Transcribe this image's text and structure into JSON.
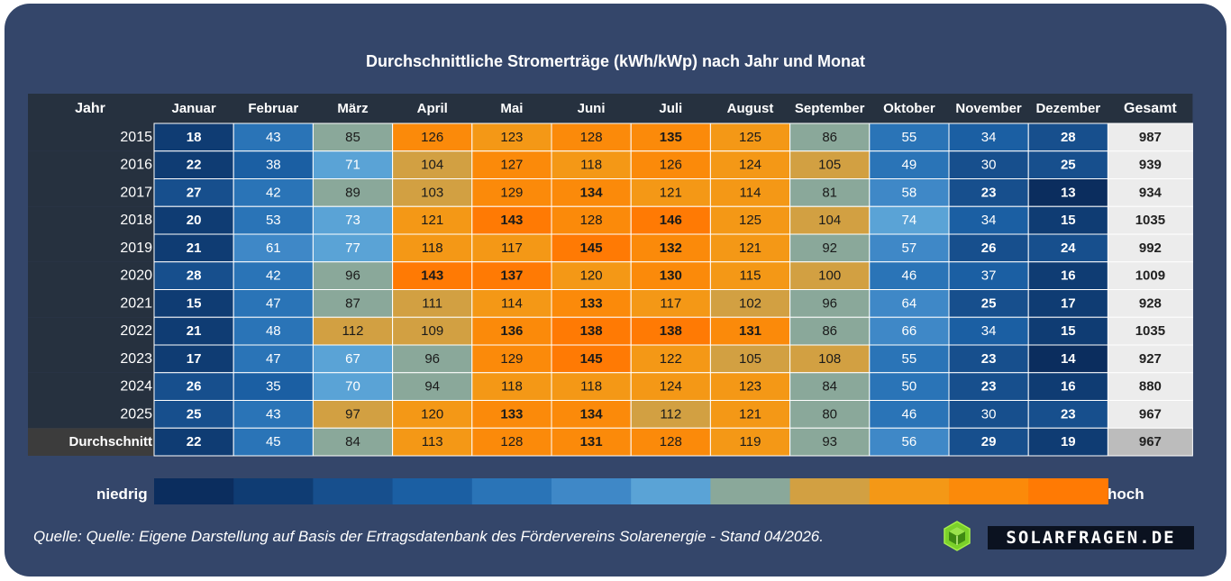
{
  "chart_data": {
    "type": "heatmap",
    "title": "Durchschnittliche Stromerträge (kWh/kWp) nach Jahr und Monat",
    "row_header": "Jahr",
    "columns": [
      "Januar",
      "Februar",
      "März",
      "April",
      "Mai",
      "Juni",
      "Juli",
      "August",
      "September",
      "Oktober",
      "November",
      "Dezember"
    ],
    "total_header": "Gesamt",
    "rows": [
      {
        "label": "2015",
        "values": [
          18,
          43,
          85,
          126,
          123,
          128,
          135,
          125,
          86,
          55,
          34,
          28
        ],
        "total": 987
      },
      {
        "label": "2016",
        "values": [
          22,
          38,
          71,
          104,
          127,
          118,
          126,
          124,
          105,
          49,
          30,
          25
        ],
        "total": 939
      },
      {
        "label": "2017",
        "values": [
          27,
          42,
          89,
          103,
          129,
          134,
          121,
          114,
          81,
          58,
          23,
          13
        ],
        "total": 934
      },
      {
        "label": "2018",
        "values": [
          20,
          53,
          73,
          121,
          143,
          128,
          146,
          125,
          104,
          74,
          34,
          15
        ],
        "total": 1035
      },
      {
        "label": "2019",
        "values": [
          21,
          61,
          77,
          118,
          117,
          145,
          132,
          121,
          92,
          57,
          26,
          24
        ],
        "total": 992
      },
      {
        "label": "2020",
        "values": [
          28,
          42,
          96,
          143,
          137,
          120,
          130,
          115,
          100,
          46,
          37,
          16
        ],
        "total": 1009
      },
      {
        "label": "2021",
        "values": [
          15,
          47,
          87,
          111,
          114,
          133,
          117,
          102,
          96,
          64,
          25,
          17
        ],
        "total": 928
      },
      {
        "label": "2022",
        "values": [
          21,
          48,
          112,
          109,
          136,
          138,
          138,
          131,
          86,
          66,
          34,
          15
        ],
        "total": 1035
      },
      {
        "label": "2023",
        "values": [
          17,
          47,
          67,
          96,
          129,
          145,
          122,
          105,
          108,
          55,
          23,
          14
        ],
        "total": 927
      },
      {
        "label": "2024",
        "values": [
          26,
          35,
          70,
          94,
          118,
          118,
          124,
          123,
          84,
          50,
          23,
          16
        ],
        "total": 880
      },
      {
        "label": "2025",
        "values": [
          25,
          43,
          97,
          120,
          133,
          134,
          112,
          121,
          80,
          46,
          30,
          23
        ],
        "total": 967
      }
    ],
    "average_row": {
      "label": "Durchschnitt",
      "values": [
        22,
        45,
        84,
        113,
        128,
        131,
        128,
        119,
        93,
        56,
        29,
        19
      ],
      "total": 967
    },
    "color_scale": [
      "#0b2d5e",
      "#0f3c73",
      "#174f8d",
      "#1b5fa3",
      "#2a74b7",
      "#3f88c7",
      "#5aa3d6",
      "#8aa89a",
      "#d2a042",
      "#f49816",
      "#fb8a0a",
      "#ff7a04"
    ],
    "legend": {
      "low": "niedrig",
      "high": "hoch"
    }
  },
  "source": "Quelle: Quelle: Eigene Darstellung auf Basis der Ertragsdatenbank des Fördervereins Solarenergie - Stand 04/2026.",
  "brand": "SOLARFRAGEN.DE",
  "logo_icon": "hexagon-box-icon"
}
